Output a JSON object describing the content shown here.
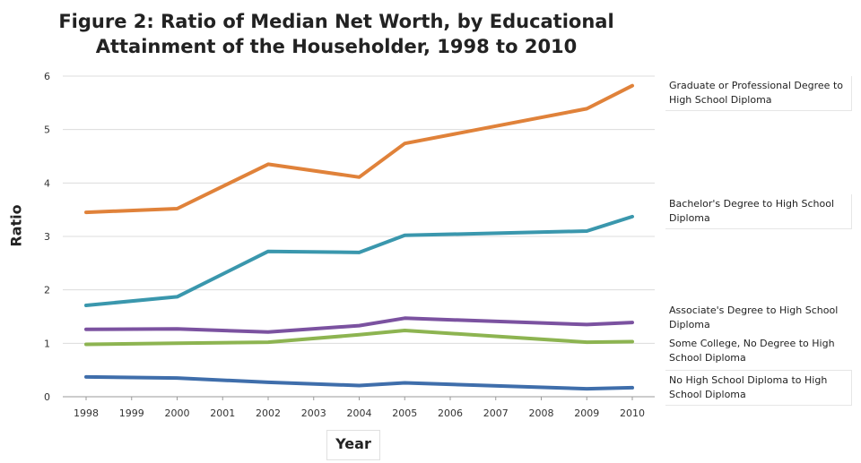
{
  "chart_data": {
    "type": "line",
    "title_line1": "Figure 2: Ratio of Median Net Worth, by Educational",
    "title_line2": "Attainment of the Householder, 1998 to 2010",
    "xlabel": "Year",
    "ylabel": "Ratio",
    "ylim": [
      0,
      6
    ],
    "yticks": [
      "0",
      "1",
      "2",
      "3",
      "4",
      "5",
      "6"
    ],
    "x": [
      "1998",
      "1999",
      "2000",
      "2001",
      "2002",
      "2003",
      "2004",
      "2005",
      "2006",
      "2007",
      "2008",
      "2009",
      "2010"
    ],
    "series": [
      {
        "name": "Graduate or Professional Degree to High School Diploma",
        "color": "#e0823a",
        "points": [
          [
            1998,
            3.45
          ],
          [
            2000,
            3.52
          ],
          [
            2002,
            4.35
          ],
          [
            2004,
            4.11
          ],
          [
            2005,
            4.74
          ],
          [
            2009,
            5.39
          ],
          [
            2010,
            5.82
          ]
        ]
      },
      {
        "name": "Bachelor's Degree to High School Diploma",
        "color": "#3a97ad",
        "points": [
          [
            1998,
            1.71
          ],
          [
            2000,
            1.87
          ],
          [
            2002,
            2.72
          ],
          [
            2004,
            2.7
          ],
          [
            2005,
            3.02
          ],
          [
            2009,
            3.1
          ],
          [
            2010,
            3.37
          ]
        ]
      },
      {
        "name": "Associate's Degree to High School Diploma",
        "color": "#7b52a0",
        "points": [
          [
            1998,
            1.26
          ],
          [
            2000,
            1.27
          ],
          [
            2002,
            1.21
          ],
          [
            2004,
            1.33
          ],
          [
            2005,
            1.47
          ],
          [
            2009,
            1.35
          ],
          [
            2010,
            1.39
          ]
        ]
      },
      {
        "name": "Some College, No Degree to High School Diploma",
        "color": "#8db451",
        "points": [
          [
            1998,
            0.98
          ],
          [
            2000,
            1.0
          ],
          [
            2002,
            1.02
          ],
          [
            2004,
            1.16
          ],
          [
            2005,
            1.24
          ],
          [
            2009,
            1.02
          ],
          [
            2010,
            1.03
          ]
        ]
      },
      {
        "name": "No High School Diploma to High School Diploma",
        "color": "#3f6eab",
        "points": [
          [
            1998,
            0.37
          ],
          [
            2000,
            0.35
          ],
          [
            2002,
            0.27
          ],
          [
            2004,
            0.21
          ],
          [
            2005,
            0.26
          ],
          [
            2009,
            0.15
          ],
          [
            2010,
            0.17
          ]
        ]
      }
    ]
  }
}
